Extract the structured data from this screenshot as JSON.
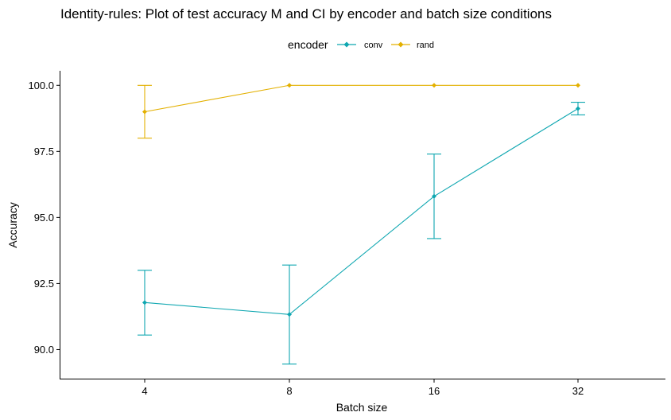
{
  "chart_data": {
    "type": "line",
    "title": "Identity-rules: Plot of test accuracy M and CI by encoder and batch size conditions",
    "xlabel": "Batch size",
    "ylabel": "Accuracy",
    "categories": [
      "4",
      "8",
      "16",
      "32"
    ],
    "ylim": [
      88.9,
      100.55
    ],
    "yticks": [
      90.0,
      92.5,
      95.0,
      97.5,
      100.0
    ],
    "ytick_labels": [
      "90.0",
      "92.5",
      "95.0",
      "97.5",
      "100.0"
    ],
    "grid": false,
    "legend": {
      "title": "encoder",
      "placement": "top",
      "entries": [
        "conv",
        "rand"
      ]
    },
    "series": [
      {
        "name": "conv",
        "color": "#0fa7b1",
        "values": [
          91.78,
          91.33,
          95.8,
          99.12
        ],
        "ci_low": [
          90.55,
          89.45,
          94.2,
          98.88
        ],
        "ci_high": [
          93.0,
          93.2,
          97.4,
          99.36
        ]
      },
      {
        "name": "rand",
        "color": "#e3b000",
        "values": [
          99.0,
          100.0,
          100.0,
          100.0
        ],
        "ci_low": [
          98.0,
          100.0,
          100.0,
          100.0
        ],
        "ci_high": [
          100.0,
          100.0,
          100.0,
          100.0
        ]
      }
    ]
  }
}
